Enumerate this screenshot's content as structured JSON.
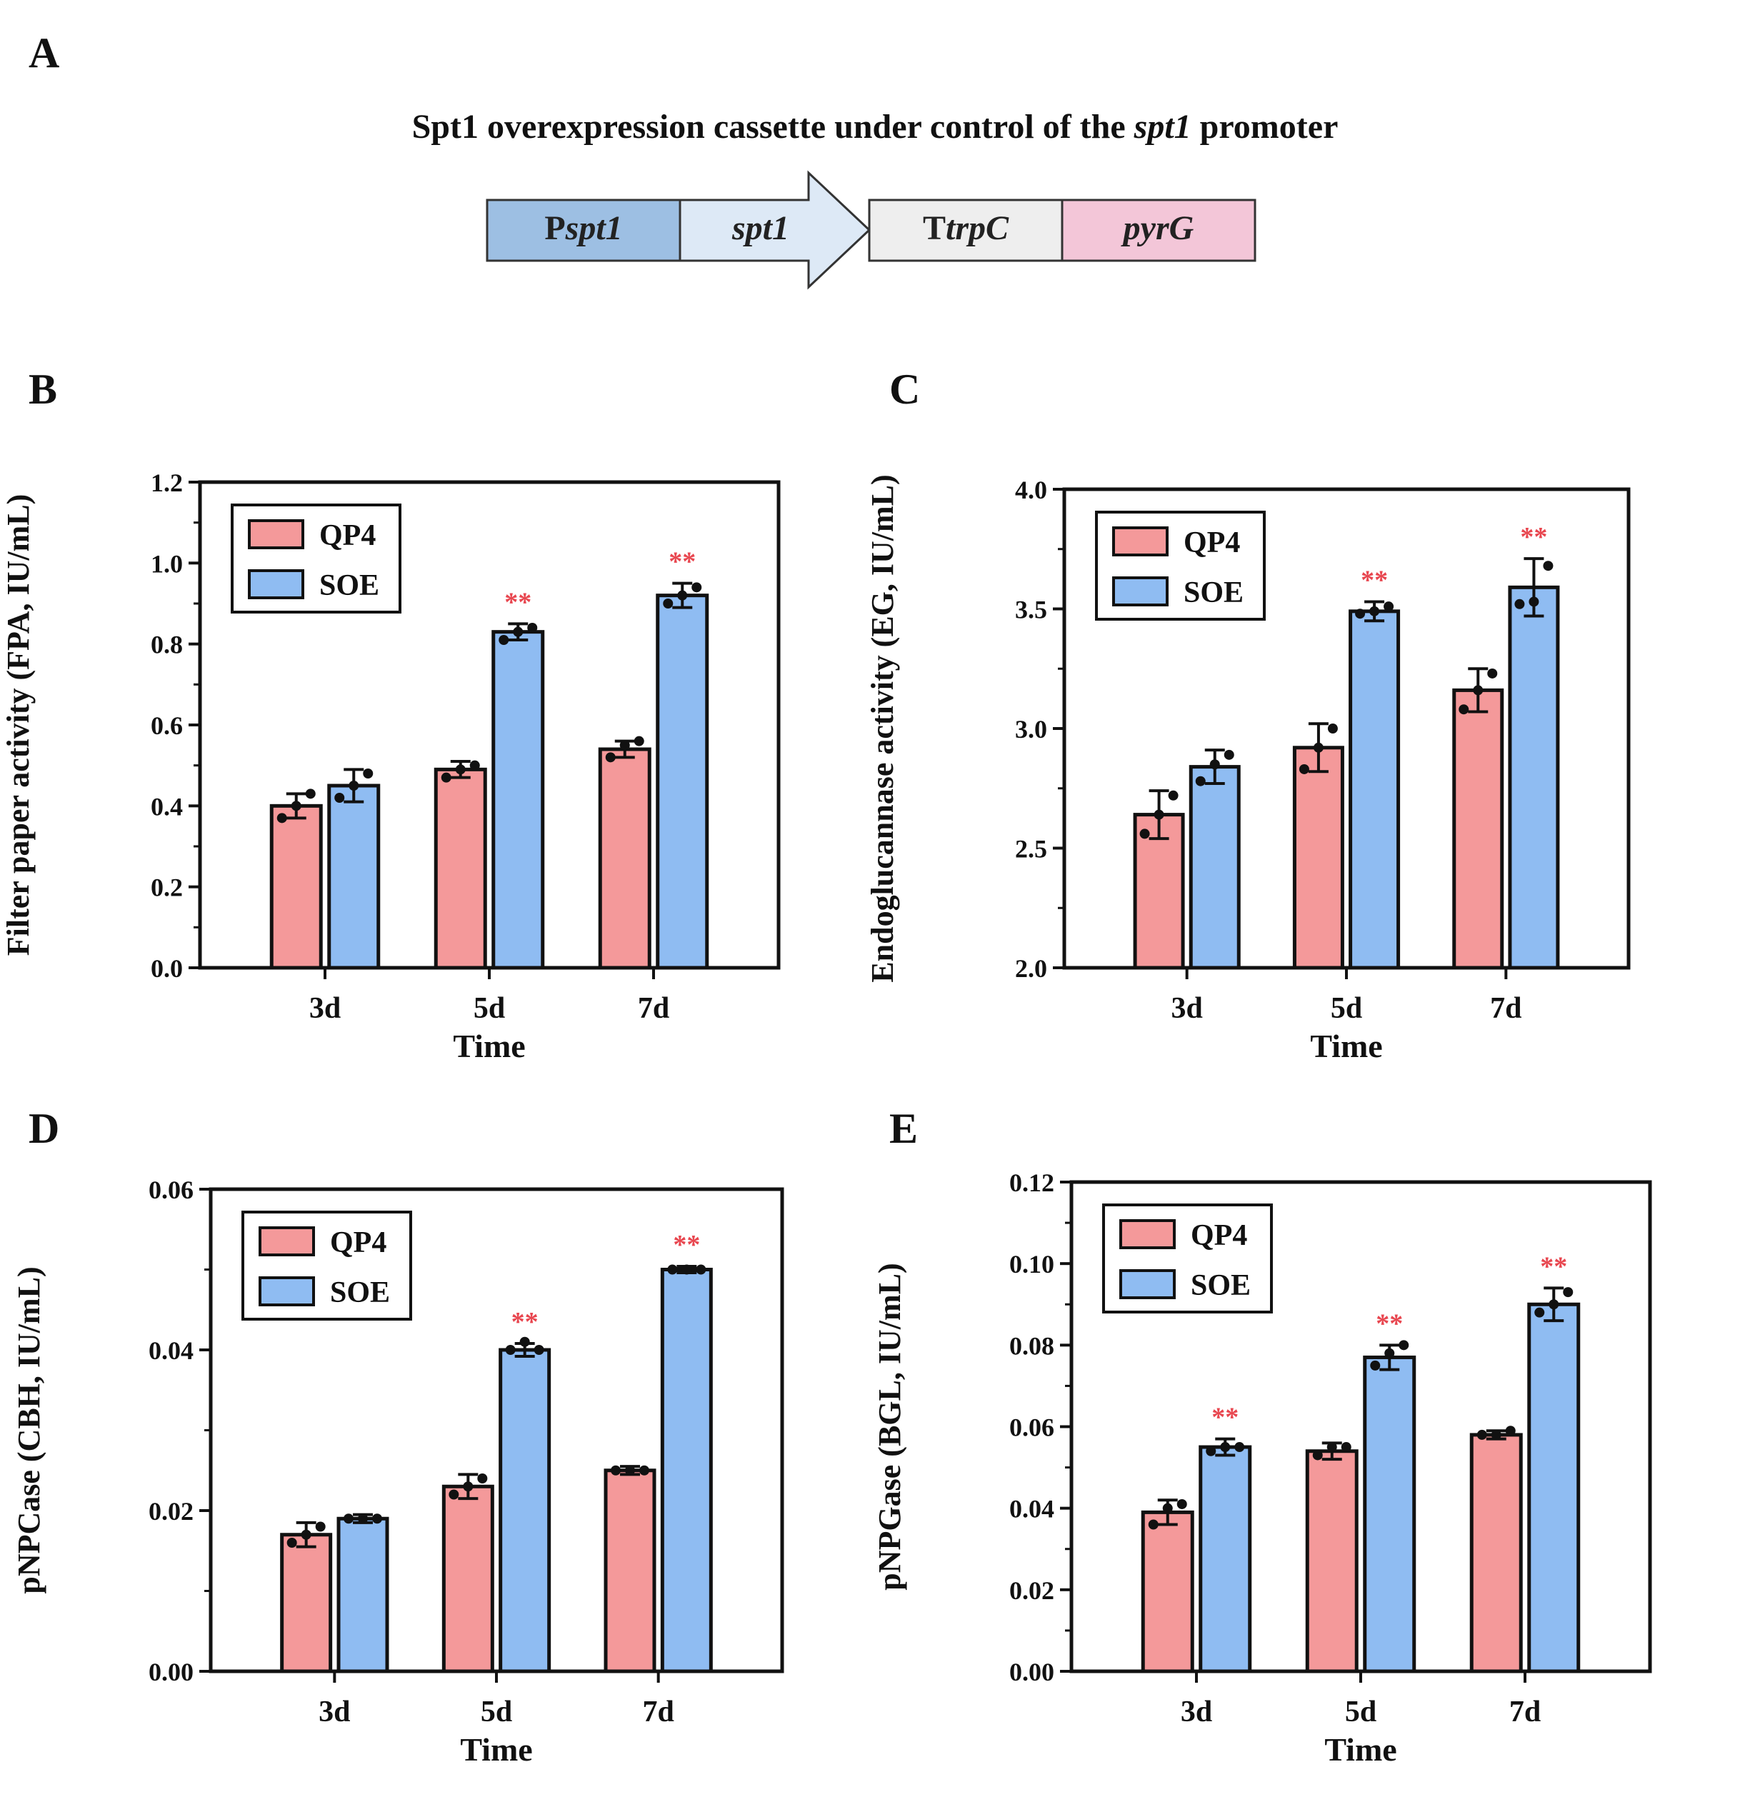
{
  "panel_a": {
    "letter": "A",
    "title_prefix": "Spt1 overexpression cassette under control of the ",
    "title_italic": "spt1",
    "title_suffix": " promoter",
    "segments": [
      {
        "prefix": "P",
        "italic": "spt1",
        "fill": "#9dbfe3"
      },
      {
        "prefix": "",
        "italic": "spt1",
        "fill": "#dde9f6"
      },
      {
        "prefix": "T",
        "italic": "trpC",
        "fill": "#eeeeee"
      },
      {
        "prefix": "",
        "italic": "pyrG",
        "fill": "#f3c6d8"
      }
    ]
  },
  "colors": {
    "qp4": "#f4999a",
    "soe": "#8fbcf2",
    "star": "#e8464f",
    "axis": "#111111"
  },
  "chart_data": [
    {
      "panel": "B",
      "type": "bar",
      "ylabel": "Filter paper activity (FPA, IU/mL)",
      "xlabel": "Time",
      "categories": [
        "3d",
        "5d",
        "7d"
      ],
      "ylim": [
        0,
        1.2
      ],
      "yticks": [
        0.0,
        0.2,
        0.4,
        0.6,
        0.8,
        1.0,
        1.2
      ],
      "tick_decimals": 1,
      "legend": "top-left",
      "series": [
        {
          "name": "QP4",
          "values": [
            0.4,
            0.49,
            0.54
          ],
          "errors": [
            0.03,
            0.02,
            0.02
          ],
          "points": [
            [
              0.37,
              0.4,
              0.43
            ],
            [
              0.47,
              0.49,
              0.5
            ],
            [
              0.52,
              0.55,
              0.56
            ]
          ]
        },
        {
          "name": "SOE",
          "values": [
            0.45,
            0.83,
            0.92
          ],
          "errors": [
            0.04,
            0.02,
            0.03
          ],
          "points": [
            [
              0.42,
              0.45,
              0.48
            ],
            [
              0.81,
              0.83,
              0.84
            ],
            [
              0.9,
              0.92,
              0.94
            ]
          ]
        }
      ],
      "significance": [
        [
          "",
          "",
          ""
        ],
        [
          "",
          "**",
          "**"
        ]
      ]
    },
    {
      "panel": "C",
      "type": "bar",
      "ylabel": "Endoglucannase activity (EG, IU/mL)",
      "xlabel": "Time",
      "categories": [
        "3d",
        "5d",
        "7d"
      ],
      "ylim": [
        2.0,
        4.0
      ],
      "yticks": [
        2.0,
        2.5,
        3.0,
        3.5,
        4.0
      ],
      "tick_decimals": 1,
      "legend": "top-left",
      "series": [
        {
          "name": "QP4",
          "values": [
            2.64,
            2.92,
            3.16
          ],
          "errors": [
            0.1,
            0.1,
            0.09
          ],
          "points": [
            [
              2.56,
              2.64,
              2.72
            ],
            [
              2.83,
              2.92,
              3.0
            ],
            [
              3.08,
              3.16,
              3.23
            ]
          ]
        },
        {
          "name": "SOE",
          "values": [
            2.84,
            3.49,
            3.59
          ],
          "errors": [
            0.07,
            0.04,
            0.12
          ],
          "points": [
            [
              2.78,
              2.85,
              2.89
            ],
            [
              3.48,
              3.49,
              3.51
            ],
            [
              3.52,
              3.53,
              3.68
            ]
          ]
        }
      ],
      "significance": [
        [
          "",
          "",
          ""
        ],
        [
          "",
          "**",
          "**"
        ]
      ]
    },
    {
      "panel": "D",
      "type": "bar",
      "ylabel": "pNPCase (CBH, IU/mL)",
      "xlabel": "Time",
      "categories": [
        "3d",
        "5d",
        "7d"
      ],
      "ylim": [
        0,
        0.06
      ],
      "yticks": [
        0.0,
        0.02,
        0.04,
        0.06
      ],
      "tick_decimals": 2,
      "legend": "top-left",
      "series": [
        {
          "name": "QP4",
          "values": [
            0.017,
            0.023,
            0.025
          ],
          "errors": [
            0.0015,
            0.0015,
            0.0005
          ],
          "points": [
            [
              0.016,
              0.017,
              0.018
            ],
            [
              0.022,
              0.023,
              0.024
            ],
            [
              0.025,
              0.025,
              0.025
            ]
          ]
        },
        {
          "name": "SOE",
          "values": [
            0.019,
            0.04,
            0.05
          ],
          "errors": [
            0.0005,
            0.0008,
            0.0004
          ],
          "points": [
            [
              0.019,
              0.019,
              0.019
            ],
            [
              0.04,
              0.041,
              0.04
            ],
            [
              0.05,
              0.05,
              0.05
            ]
          ]
        }
      ],
      "significance": [
        [
          "",
          "",
          ""
        ],
        [
          "",
          "**",
          "**"
        ]
      ]
    },
    {
      "panel": "E",
      "type": "bar",
      "ylabel": "pNPGase (BGL, IU/mL)",
      "xlabel": "Time",
      "categories": [
        "3d",
        "5d",
        "7d"
      ],
      "ylim": [
        0,
        0.12
      ],
      "yticks": [
        0.0,
        0.02,
        0.04,
        0.06,
        0.08,
        0.1,
        0.12
      ],
      "tick_decimals": 2,
      "legend": "top-left",
      "series": [
        {
          "name": "QP4",
          "values": [
            0.039,
            0.054,
            0.058
          ],
          "errors": [
            0.003,
            0.002,
            0.001
          ],
          "points": [
            [
              0.036,
              0.04,
              0.041
            ],
            [
              0.053,
              0.055,
              0.055
            ],
            [
              0.058,
              0.058,
              0.059
            ]
          ]
        },
        {
          "name": "SOE",
          "values": [
            0.055,
            0.077,
            0.09
          ],
          "errors": [
            0.002,
            0.003,
            0.004
          ],
          "points": [
            [
              0.054,
              0.055,
              0.055
            ],
            [
              0.075,
              0.078,
              0.08
            ],
            [
              0.088,
              0.09,
              0.093
            ]
          ]
        }
      ],
      "significance": [
        [
          "",
          "",
          ""
        ],
        [
          "**",
          "**",
          "**"
        ]
      ]
    }
  ]
}
